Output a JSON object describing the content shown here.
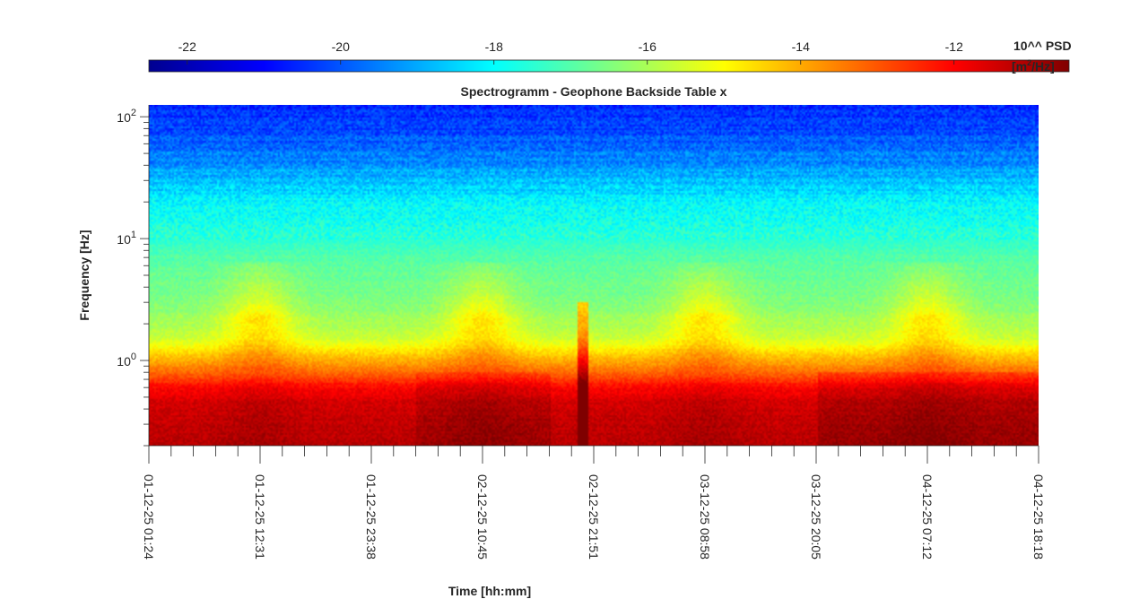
{
  "chart_data": {
    "type": "heatmap",
    "title": "Spectrogramm - Geophone Backside Table x",
    "xlabel": "Time [hh:mm]",
    "ylabel": "Frequency [Hz]",
    "y_scale": "log",
    "ylim": [
      0.2,
      125
    ],
    "y_ticks": [
      {
        "value": 1,
        "base": "10",
        "exp": "0"
      },
      {
        "value": 10,
        "base": "10",
        "exp": "1"
      },
      {
        "value": 100,
        "base": "10",
        "exp": "2"
      }
    ],
    "x_ticks": [
      "01-12-25 01:24",
      "01-12-25 12:31",
      "01-12-25 23:38",
      "02-12-25 10:45",
      "02-12-25 21:51",
      "03-12-25 08:58",
      "03-12-25 20:05",
      "04-12-25 07:12",
      "04-12-25 18:18"
    ],
    "colorbar": {
      "colormap": "jet",
      "limits": [
        -22.5,
        -10.5
      ],
      "ticks": [
        "-22",
        "-20",
        "-18",
        "-16",
        "-14",
        "-12"
      ],
      "tick_values": [
        -22,
        -20,
        -18,
        -16,
        -14,
        -12
      ],
      "label_line1": "10^^ PSD",
      "label_line2_prefix": "[m",
      "label_line2_sup": "2",
      "label_line2_suffix": "/Hz]"
    },
    "psd_profile": {
      "description_units": "log10 PSD [m^2/Hz] vs frequency [Hz]",
      "freq_hz": [
        0.2,
        0.3,
        0.45,
        0.6,
        0.8,
        1.0,
        1.5,
        2,
        3,
        5,
        7,
        10,
        15,
        20,
        30,
        50,
        80,
        125
      ],
      "log10_psd": [
        -11.2,
        -11.3,
        -11.5,
        -12.0,
        -13.3,
        -14.0,
        -15.6,
        -16.0,
        -16.5,
        -16.8,
        -17.0,
        -17.5,
        -17.8,
        -18.0,
        -18.8,
        -19.6,
        -20.2,
        -20.6
      ]
    },
    "events": [
      {
        "time": "02-12-25 21:20",
        "type": "broadband burst",
        "max_freq_hz": 3
      }
    ]
  }
}
